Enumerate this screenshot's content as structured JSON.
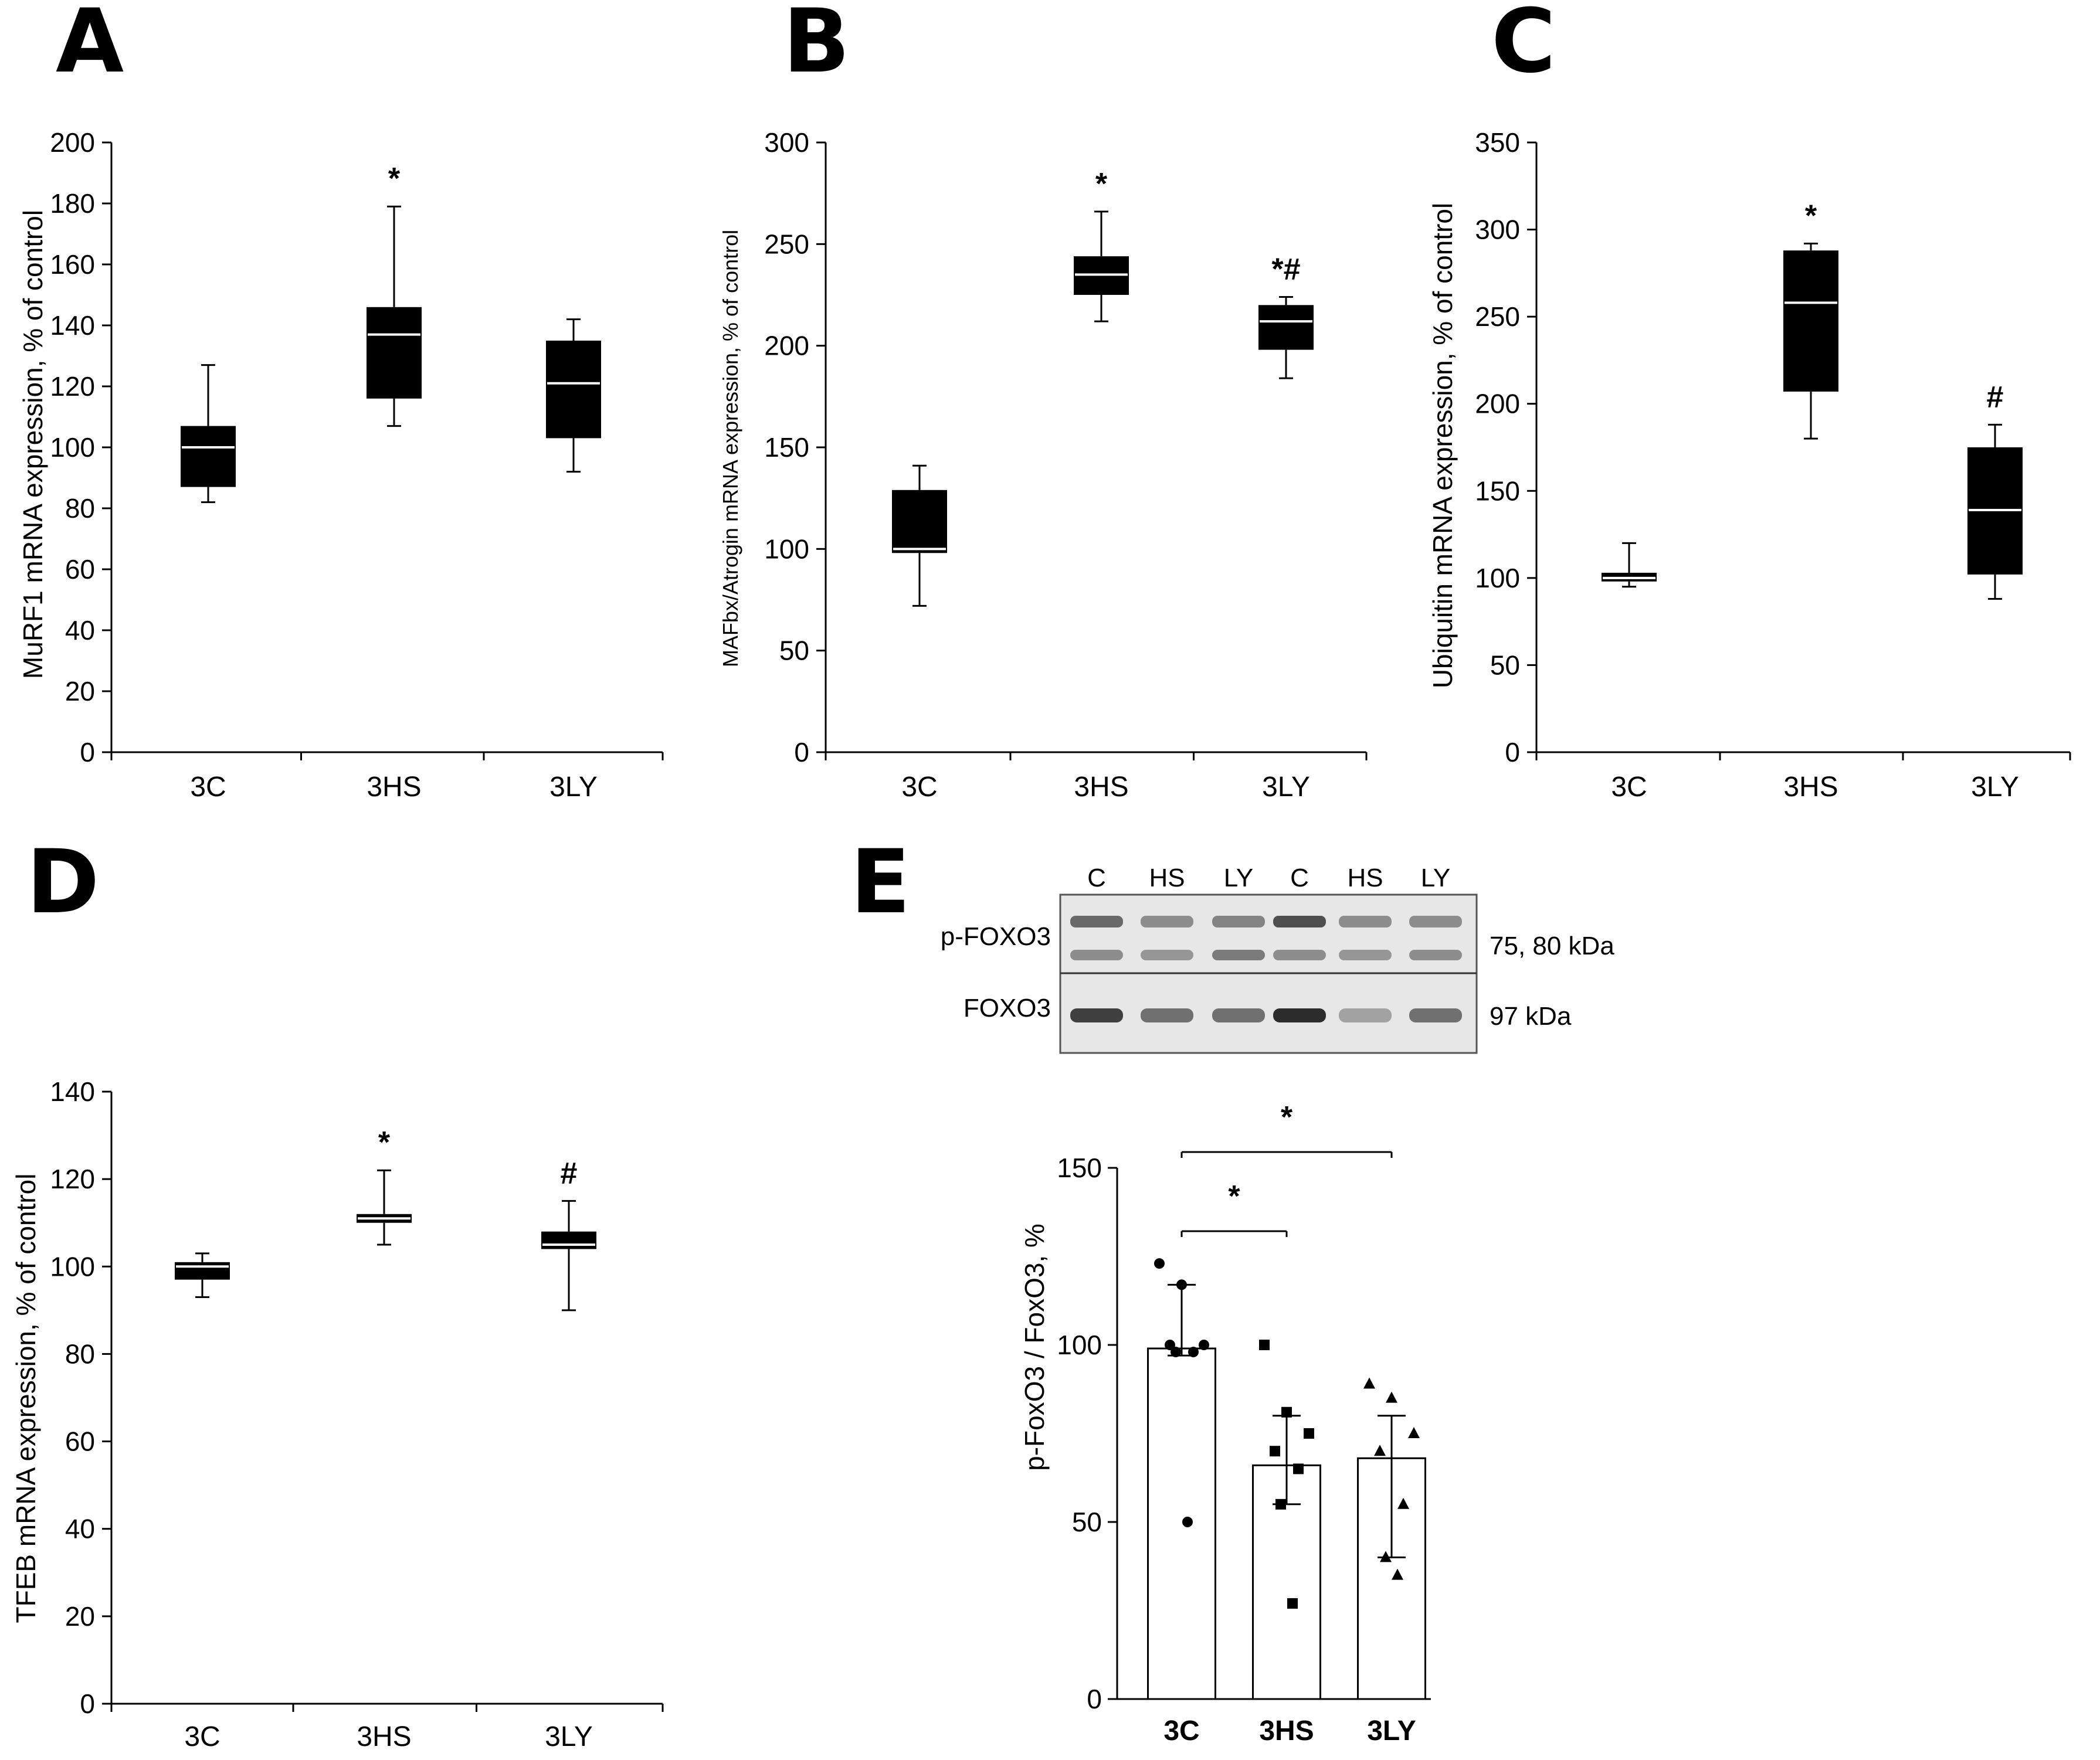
{
  "colors": {
    "box_fill": "#000000",
    "median": "#ffffff",
    "bar_fill": "#ffffff",
    "axis": "#000000",
    "background": "#ffffff"
  },
  "chart_data": [
    {
      "panel": "A",
      "type": "box",
      "ylabel": "MuRF1 mRNA expression, % of control",
      "ylim": [
        0,
        200
      ],
      "yticks": [
        0,
        20,
        40,
        60,
        80,
        100,
        120,
        140,
        160,
        180,
        200
      ],
      "categories": [
        "3C",
        "3HS",
        "3LY"
      ],
      "boxes": [
        {
          "min": 82,
          "q1": 87,
          "median": 100,
          "q3": 107,
          "max": 127,
          "mark": ""
        },
        {
          "min": 107,
          "q1": 116,
          "median": 137,
          "q3": 146,
          "max": 179,
          "mark": "*"
        },
        {
          "min": 92,
          "q1": 103,
          "median": 121,
          "q3": 135,
          "max": 142,
          "mark": ""
        }
      ]
    },
    {
      "panel": "B",
      "type": "box",
      "ylabel": "MAFbx/Atrogin mRNA expression, % of control",
      "ylim": [
        0,
        300
      ],
      "yticks": [
        0,
        50,
        100,
        150,
        200,
        250,
        300
      ],
      "categories": [
        "3C",
        "3HS",
        "3LY"
      ],
      "boxes": [
        {
          "min": 72,
          "q1": 98,
          "median": 100,
          "q3": 129,
          "max": 141,
          "mark": ""
        },
        {
          "min": 212,
          "q1": 225,
          "median": 235,
          "q3": 244,
          "max": 266,
          "mark": "*"
        },
        {
          "min": 184,
          "q1": 198,
          "median": 212,
          "q3": 220,
          "max": 224,
          "mark": "*#"
        }
      ]
    },
    {
      "panel": "C",
      "type": "box",
      "ylabel": "Ubiquitin mRNA expression, % of control",
      "ylim": [
        0,
        350
      ],
      "yticks": [
        0,
        50,
        100,
        150,
        200,
        250,
        300,
        350
      ],
      "categories": [
        "3C",
        "3HS",
        "3LY"
      ],
      "boxes": [
        {
          "min": 95,
          "q1": 98,
          "median": 100,
          "q3": 103,
          "max": 120,
          "mark": ""
        },
        {
          "min": 180,
          "q1": 207,
          "median": 258,
          "q3": 288,
          "max": 292,
          "mark": "*"
        },
        {
          "min": 88,
          "q1": 102,
          "median": 139,
          "q3": 175,
          "max": 188,
          "mark": "#"
        }
      ]
    },
    {
      "panel": "D",
      "type": "box",
      "ylabel": "TFEB mRNA expression, % of control",
      "ylim": [
        0,
        140
      ],
      "yticks": [
        0,
        20,
        40,
        60,
        80,
        100,
        120,
        140
      ],
      "categories": [
        "3C",
        "3HS",
        "3LY"
      ],
      "boxes": [
        {
          "min": 93,
          "q1": 97,
          "median": 100,
          "q3": 101,
          "max": 103,
          "mark": ""
        },
        {
          "min": 105,
          "q1": 110,
          "median": 111,
          "q3": 112,
          "max": 122,
          "mark": "*"
        },
        {
          "min": 90,
          "q1": 104,
          "median": 105,
          "q3": 108,
          "max": 115,
          "mark": "#"
        }
      ]
    },
    {
      "panel": "E",
      "type": "bar",
      "ylabel": "p-FoxO3 / FoxO3, %",
      "ylim": [
        0,
        150
      ],
      "yticks": [
        0,
        50,
        100,
        150
      ],
      "categories": [
        "3C",
        "3HS",
        "3LY"
      ],
      "values": [
        99,
        66,
        68
      ],
      "errors": [
        {
          "low": 97,
          "high": 117
        },
        {
          "low": 55,
          "high": 80
        },
        {
          "low": 40,
          "high": 80
        }
      ],
      "points": [
        [
          123,
          117,
          100,
          100,
          98,
          98,
          50
        ],
        [
          100,
          81,
          75,
          70,
          65,
          55,
          27
        ],
        [
          89,
          85,
          75,
          70,
          55,
          40,
          35
        ]
      ],
      "markers": [
        "circle",
        "square",
        "triangle"
      ],
      "comparisons": [
        {
          "from": 0,
          "to": 1,
          "label": "*"
        },
        {
          "from": 0,
          "to": 2,
          "label": "*"
        }
      ],
      "blot": {
        "lanes": [
          "C",
          "HS",
          "LY",
          "C",
          "HS",
          "LY"
        ],
        "rows": [
          "p-FOXO3",
          "FOXO3"
        ],
        "sizes": [
          "75, 80 kDa",
          "97 kDa"
        ]
      }
    }
  ]
}
